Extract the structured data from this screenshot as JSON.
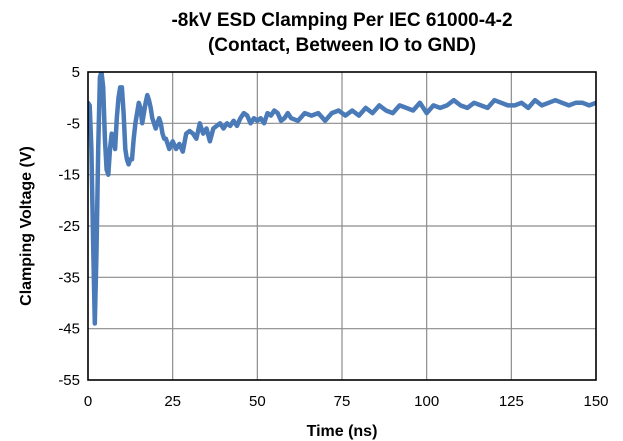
{
  "chart_data": {
    "type": "line",
    "title": [
      "-8kV ESD Clamping Per IEC 61000-4-2",
      "(Contact, Between IO to GND)"
    ],
    "xlabel": "Time (ns)",
    "ylabel": "Clamping Voltage (V)",
    "xlim": [
      0,
      150
    ],
    "ylim": [
      -55,
      5
    ],
    "xticks": [
      0,
      25,
      50,
      75,
      100,
      125,
      150
    ],
    "yticks": [
      5,
      -5,
      -15,
      -25,
      -35,
      -45,
      -55
    ],
    "grid": true,
    "colors": {
      "line": "#4a7ab8",
      "grid": "#8c8c8c",
      "frame": "#000000"
    },
    "series": [
      {
        "x": [
          0,
          0.5,
          1,
          1.5,
          2,
          2.5,
          3,
          3.5,
          4,
          4.5,
          5,
          5.5,
          6,
          6.5,
          7,
          7.5,
          8,
          8.5,
          9,
          9.5,
          10,
          10.5,
          11,
          11.5,
          12,
          12.5,
          13,
          13.5,
          14,
          14.5,
          15,
          15.5,
          16,
          16.5,
          17,
          17.5,
          18,
          18.5,
          19,
          19.5,
          20,
          20.5,
          21,
          21.5,
          22,
          22.5,
          23,
          24,
          25,
          26,
          27,
          28,
          29,
          30,
          31,
          32,
          33,
          34,
          35,
          36,
          37,
          38,
          39,
          40,
          41,
          42,
          43,
          44,
          45,
          46,
          47,
          48,
          49,
          50,
          51,
          52,
          53,
          54,
          55,
          56,
          57,
          58,
          59,
          60,
          62,
          64,
          66,
          68,
          70,
          72,
          74,
          76,
          78,
          80,
          82,
          84,
          86,
          88,
          90,
          92,
          94,
          96,
          98,
          100,
          102,
          104,
          106,
          108,
          110,
          112,
          114,
          116,
          118,
          120,
          122,
          124,
          126,
          128,
          130,
          132,
          134,
          136,
          138,
          140,
          142,
          144,
          146,
          148,
          150
        ],
        "y": [
          -1,
          -1.5,
          -10,
          -28,
          -44,
          -30,
          -10,
          4,
          5,
          2,
          -8,
          -14,
          -15,
          -10,
          -7,
          -8,
          -10,
          -4,
          0,
          2,
          2,
          -3,
          -10,
          -12,
          -13,
          -12,
          -12,
          -8,
          -5,
          -3,
          -1,
          -2,
          -5,
          -3,
          -1,
          0.5,
          -0.5,
          -2,
          -4,
          -5,
          -6,
          -5,
          -4,
          -5,
          -7,
          -8,
          -8,
          -10,
          -8.5,
          -10,
          -9,
          -10.5,
          -7,
          -6.5,
          -7,
          -8,
          -5,
          -7,
          -6,
          -8.5,
          -6,
          -5.5,
          -5,
          -6,
          -5,
          -5.5,
          -4.5,
          -5.5,
          -4,
          -3,
          -3.5,
          -5,
          -4,
          -4.5,
          -4,
          -5,
          -3,
          -3.5,
          -2.5,
          -3,
          -4.5,
          -4,
          -3,
          -4,
          -4.5,
          -3,
          -3.5,
          -3,
          -4.5,
          -3,
          -2.5,
          -3.5,
          -2.5,
          -3.5,
          -2,
          -3,
          -1.5,
          -2.5,
          -3,
          -1.5,
          -2,
          -2.5,
          -1,
          -3,
          -1.5,
          -2,
          -1.5,
          -0.5,
          -1.5,
          -2,
          -1,
          -1.5,
          -2,
          -0.5,
          -1,
          -1.5,
          -1.5,
          -1,
          -2,
          -0.5,
          -1.5,
          -1,
          -0.5,
          -1,
          -1.5,
          -1,
          -1,
          -1.5,
          -1
        ]
      }
    ]
  }
}
